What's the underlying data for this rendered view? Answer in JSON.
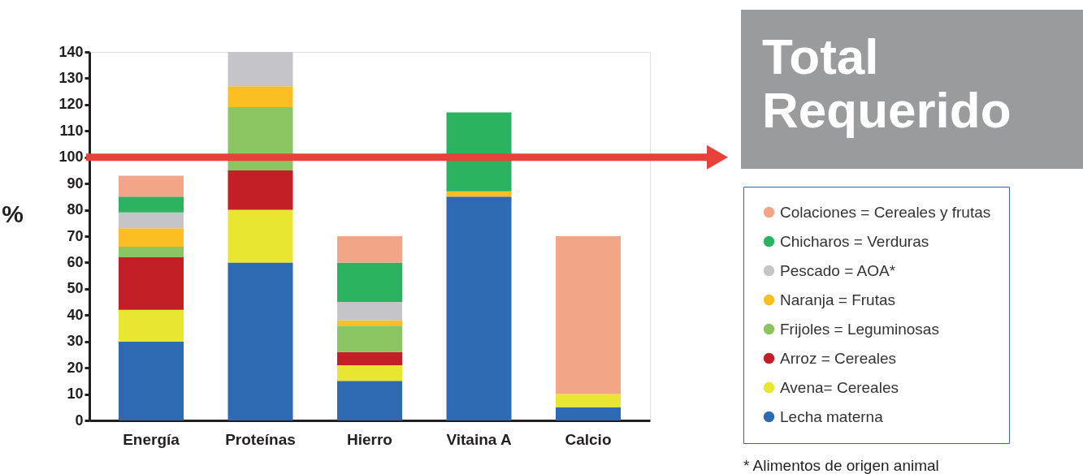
{
  "chart_data": {
    "type": "bar",
    "stacked": true,
    "ylabel": "%",
    "categories": [
      "Energía",
      "Proteínas",
      "Hierro",
      "Vitaina A",
      "Calcio"
    ],
    "ylim": [
      0,
      140
    ],
    "yticks": [
      0,
      10,
      20,
      30,
      40,
      50,
      60,
      70,
      80,
      90,
      100,
      110,
      120,
      130,
      140
    ],
    "series": [
      {
        "name": "Lecha materna",
        "color": "#2e6ab1",
        "values": [
          30,
          60,
          15,
          85,
          5
        ]
      },
      {
        "name": "Avena= Cereales",
        "color": "#e8e631",
        "values": [
          12,
          20,
          6,
          null,
          5
        ]
      },
      {
        "name": "Arroz = Cereales",
        "color": "#c22026",
        "values": [
          20,
          15,
          5,
          null,
          null
        ]
      },
      {
        "name": "Frijoles = Leguminosas",
        "color": "#8bc561",
        "values": [
          4,
          24,
          10,
          null,
          null
        ]
      },
      {
        "name": "Naranja = Frutas",
        "color": "#fbbf24",
        "values": [
          7,
          8,
          2,
          2,
          null
        ]
      },
      {
        "name": "Pescado = AOA*",
        "color": "#c5c4c9",
        "values": [
          6,
          13,
          7,
          null,
          null
        ]
      },
      {
        "name": "Chicharos = Verduras",
        "color": "#2bb360",
        "values": [
          6,
          null,
          15,
          30,
          null
        ]
      },
      {
        "name": "Colaciones = Cereales y frutas",
        "color": "#f2a587",
        "values": [
          8,
          null,
          10,
          null,
          60
        ]
      }
    ],
    "ref_lines": [
      {
        "axis": "y",
        "value": 100,
        "label": "Total Requerido",
        "color": "#e8413a"
      }
    ],
    "legend": "right",
    "annotations": [
      "* Alimentos de origen animal"
    ]
  }
}
